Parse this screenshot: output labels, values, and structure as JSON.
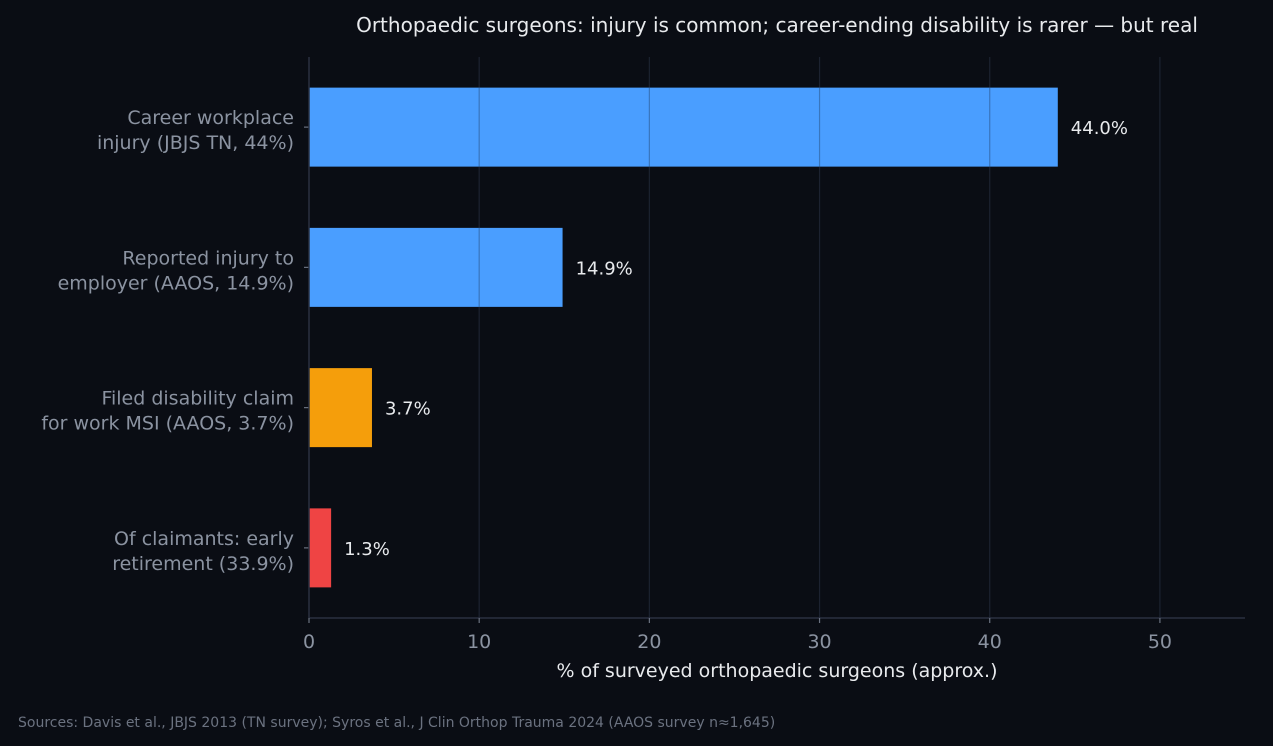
{
  "chart_data": {
    "type": "bar",
    "orientation": "horizontal",
    "title": "Orthopaedic surgeons: injury is common; career-ending disability is rarer — but real",
    "xlabel": "% of surveyed orthopaedic surgeons (approx.)",
    "ylabel": "",
    "xlim": [
      0,
      55
    ],
    "xticks": [
      0,
      10,
      20,
      30,
      40,
      50
    ],
    "grid": true,
    "source": "Sources: Davis et al., JBJS 2013 (TN survey); Syros et al., J Clin Orthop Trauma 2024 (AAOS survey n≈1,645)",
    "categories": [
      [
        "Career workplace",
        "injury (JBJS TN, 44%)"
      ],
      [
        "Reported injury to",
        "employer (AAOS, 14.9%)"
      ],
      [
        "Filed disability claim",
        "for work MSI (AAOS, 3.7%)"
      ],
      [
        "Of claimants: early",
        "retirement (33.9%)"
      ]
    ],
    "values": [
      44.0,
      14.9,
      3.7,
      1.3
    ],
    "value_labels": [
      "44.0%",
      "14.9%",
      "3.7%",
      "1.3%"
    ],
    "colors": [
      "#4a9eff",
      "#4a9eff",
      "#f59e0b",
      "#ef4444"
    ]
  }
}
